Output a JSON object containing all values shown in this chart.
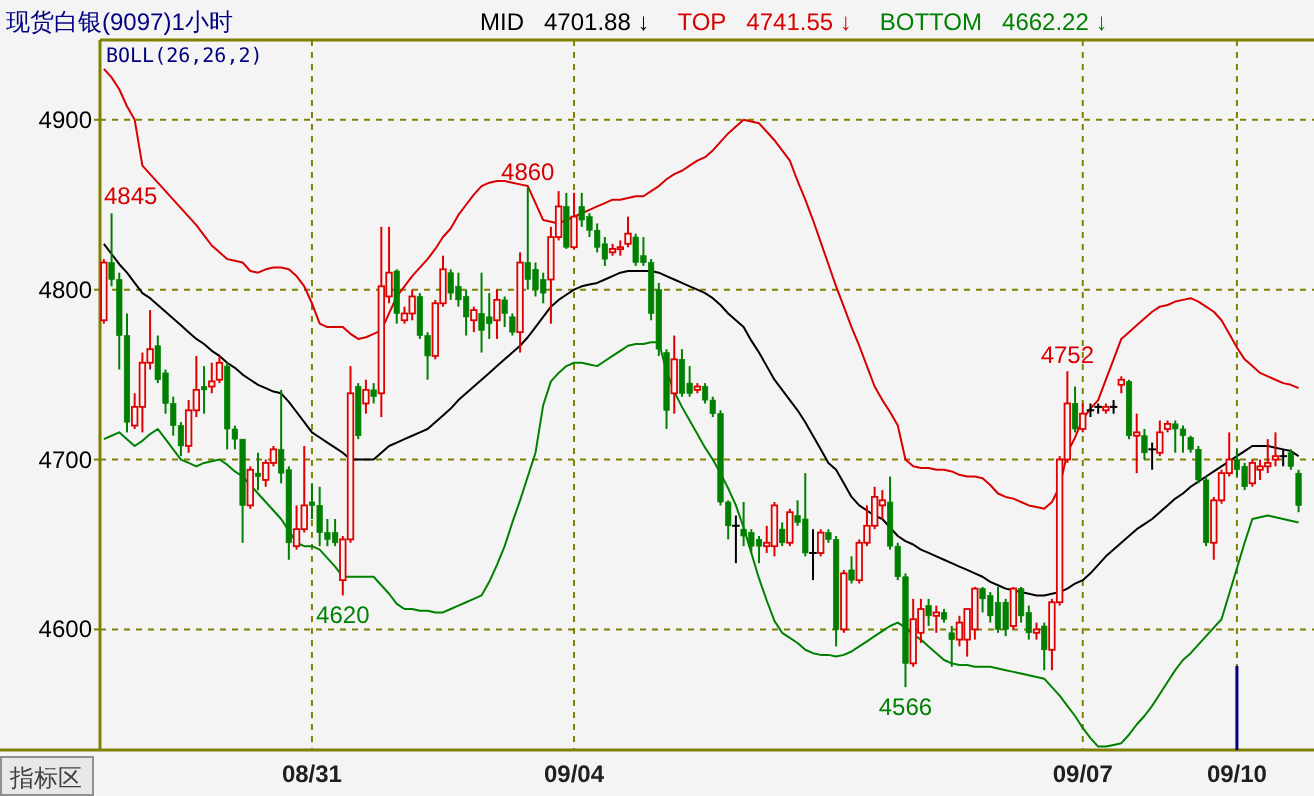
{
  "chart_data": {
    "type": "candlestick",
    "title": "现货白银(9097)1小时",
    "legend": "top",
    "grid": true,
    "ylim": [
      4529,
      4947
    ],
    "ref_lines": [
      {
        "axis": "x",
        "value": "09/10",
        "color": "#000080"
      }
    ],
    "yticks": [
      4600,
      4700,
      4800,
      4900
    ],
    "categories": [
      null,
      null,
      null,
      null,
      null,
      null,
      null,
      null,
      null,
      null,
      null,
      null,
      null,
      null,
      null,
      null,
      null,
      null,
      null,
      null,
      null,
      null,
      null,
      null,
      null,
      null,
      null,
      "08/31",
      null,
      null,
      null,
      null,
      null,
      null,
      null,
      null,
      null,
      null,
      null,
      null,
      null,
      null,
      null,
      null,
      null,
      null,
      null,
      null,
      null,
      null,
      null,
      null,
      null,
      null,
      null,
      null,
      null,
      null,
      null,
      null,
      null,
      "09/04",
      null,
      null,
      null,
      null,
      null,
      null,
      null,
      null,
      null,
      null,
      null,
      null,
      null,
      null,
      null,
      null,
      null,
      null,
      null,
      null,
      null,
      null,
      null,
      null,
      null,
      null,
      null,
      null,
      null,
      null,
      null,
      null,
      null,
      null,
      null,
      null,
      null,
      null,
      null,
      null,
      null,
      null,
      null,
      null,
      null,
      null,
      null,
      null,
      null,
      null,
      null,
      null,
      null,
      null,
      null,
      null,
      null,
      null,
      null,
      null,
      null,
      null,
      null,
      null,
      null,
      "09/07",
      null,
      null,
      null,
      null,
      null,
      null,
      null,
      null,
      null,
      null,
      null,
      null,
      null,
      null,
      null,
      null,
      null,
      null,
      null,
      "09/10",
      null,
      null,
      null,
      null,
      null,
      null,
      null,
      null
    ],
    "ohlc": [
      [
        4782,
        4818,
        4780,
        4816
      ],
      [
        4816,
        4845,
        4802,
        4806
      ],
      [
        4806,
        4810,
        4753,
        4773
      ],
      [
        4773,
        4786,
        4716,
        4722
      ],
      [
        4720,
        4739,
        4718,
        4731
      ],
      [
        4731,
        4763,
        4716,
        4757
      ],
      [
        4757,
        4788,
        4753,
        4765
      ],
      [
        4767,
        4773,
        4745,
        4747
      ],
      [
        4751,
        4753,
        4727,
        4733
      ],
      [
        4733,
        4737,
        4714,
        4720
      ],
      [
        4720,
        4722,
        4702,
        4708
      ],
      [
        4708,
        4735,
        4704,
        4729
      ],
      [
        4729,
        4761,
        4725,
        4741
      ],
      [
        4743,
        4755,
        4727,
        4741
      ],
      [
        4743,
        4757,
        4739,
        4746
      ],
      [
        4747,
        4761,
        4745,
        4757
      ],
      [
        4755,
        4757,
        4706,
        4718
      ],
      [
        4718,
        4720,
        4706,
        4712
      ],
      [
        4712,
        4712,
        4651,
        4673
      ],
      [
        4673,
        4696,
        4671,
        4694
      ],
      [
        4692,
        4704,
        4682,
        4690
      ],
      [
        4688,
        4700,
        4684,
        4698
      ],
      [
        4698,
        4708,
        4696,
        4706
      ],
      [
        4706,
        4741,
        4686,
        4692
      ],
      [
        4694,
        4696,
        4641,
        4651
      ],
      [
        4649,
        4673,
        4647,
        4659
      ],
      [
        4659,
        4708,
        4657,
        4673
      ],
      [
        4675,
        4686,
        4665,
        4673
      ],
      [
        4673,
        4684,
        4649,
        4657
      ],
      [
        4657,
        4665,
        4649,
        4653
      ],
      [
        4657,
        4665,
        4649,
        4651
      ],
      [
        4629,
        4655,
        4620,
        4653
      ],
      [
        4653,
        4755,
        4651,
        4739
      ],
      [
        4743,
        4745,
        4712,
        4714
      ],
      [
        4733,
        4747,
        4727,
        4741
      ],
      [
        4741,
        4745,
        4733,
        4737
      ],
      [
        4739,
        4837,
        4725,
        4802
      ],
      [
        4796,
        4837,
        4792,
        4810
      ],
      [
        4811,
        4812,
        4780,
        4786
      ],
      [
        4782,
        4790,
        4780,
        4786
      ],
      [
        4786,
        4800,
        4782,
        4796
      ],
      [
        4796,
        4798,
        4771,
        4773
      ],
      [
        4773,
        4775,
        4747,
        4761
      ],
      [
        4761,
        4794,
        4759,
        4792
      ],
      [
        4792,
        4820,
        4790,
        4812
      ],
      [
        4810,
        4812,
        4794,
        4798
      ],
      [
        4802,
        4810,
        4790,
        4794
      ],
      [
        4796,
        4800,
        4773,
        4784
      ],
      [
        4782,
        4790,
        4775,
        4788
      ],
      [
        4786,
        4810,
        4763,
        4776
      ],
      [
        4784,
        4798,
        4771,
        4780
      ],
      [
        4782,
        4800,
        4771,
        4794
      ],
      [
        4794,
        4796,
        4778,
        4786
      ],
      [
        4784,
        4786,
        4773,
        4775
      ],
      [
        4775,
        4822,
        4763,
        4816
      ],
      [
        4816,
        4860,
        4800,
        4806
      ],
      [
        4812,
        4816,
        4796,
        4800
      ],
      [
        4806,
        4810,
        4792,
        4798
      ],
      [
        4806,
        4837,
        4780,
        4831
      ],
      [
        4831,
        4858,
        4829,
        4849
      ],
      [
        4849,
        4857,
        4824,
        4825
      ],
      [
        4825,
        4857,
        4824,
        4843
      ],
      [
        4849,
        4857,
        4837,
        4841
      ],
      [
        4843,
        4845,
        4831,
        4835
      ],
      [
        4835,
        4839,
        4822,
        4825
      ],
      [
        4827,
        4831,
        4814,
        4818
      ],
      [
        4822,
        4827,
        4820,
        4824
      ],
      [
        4824,
        4829,
        4820,
        4825
      ],
      [
        4827,
        4843,
        4825,
        4833
      ],
      [
        4831,
        4833,
        4814,
        4816
      ],
      [
        4820,
        4831,
        4814,
        4816
      ],
      [
        4816,
        4818,
        4782,
        4786
      ],
      [
        4800,
        4804,
        4761,
        4765
      ],
      [
        4763,
        4765,
        4718,
        4729
      ],
      [
        4739,
        4773,
        4727,
        4759
      ],
      [
        4759,
        4765,
        4737,
        4739
      ],
      [
        4745,
        4755,
        4737,
        4739
      ],
      [
        4741,
        4745,
        4739,
        4743
      ],
      [
        4743,
        4745,
        4733,
        4735
      ],
      [
        4735,
        4737,
        4725,
        4727
      ],
      [
        4727,
        4729,
        4673,
        4675
      ],
      [
        4675,
        4676,
        4653,
        4661
      ],
      [
        4661,
        4667,
        4639,
        4661
      ],
      [
        4659,
        4675,
        4649,
        4655
      ],
      [
        4657,
        4659,
        4645,
        4649
      ],
      [
        4653,
        4655,
        4639,
        4649
      ],
      [
        4649,
        4661,
        4645,
        4651
      ],
      [
        4649,
        4675,
        4643,
        4673
      ],
      [
        4659,
        4663,
        4649,
        4651
      ],
      [
        4651,
        4671,
        4649,
        4669
      ],
      [
        4667,
        4676,
        4661,
        4663
      ],
      [
        4665,
        4692,
        4643,
        4645
      ],
      [
        4645,
        4659,
        4629,
        4645
      ],
      [
        4645,
        4659,
        4643,
        4657
      ],
      [
        4657,
        4659,
        4651,
        4653
      ],
      [
        4653,
        4655,
        4590,
        4600
      ],
      [
        4600,
        4635,
        4598,
        4633
      ],
      [
        4635,
        4643,
        4627,
        4629
      ],
      [
        4629,
        4653,
        4627,
        4651
      ],
      [
        4651,
        4673,
        4649,
        4661
      ],
      [
        4661,
        4684,
        4659,
        4678
      ],
      [
        4673,
        4682,
        4665,
        4676
      ],
      [
        4675,
        4690,
        4647,
        4649
      ],
      [
        4649,
        4651,
        4629,
        4631
      ],
      [
        4631,
        4633,
        4566,
        4580
      ],
      [
        4580,
        4618,
        4578,
        4606
      ],
      [
        4598,
        4618,
        4592,
        4612
      ],
      [
        4614,
        4618,
        4602,
        4608
      ],
      [
        4608,
        4614,
        4598,
        4610
      ],
      [
        4610,
        4612,
        4604,
        4606
      ],
      [
        4598,
        4602,
        4578,
        4594
      ],
      [
        4594,
        4608,
        4590,
        4604
      ],
      [
        4594,
        4612,
        4584,
        4612
      ],
      [
        4600,
        4625,
        4594,
        4624
      ],
      [
        4624,
        4625,
        4610,
        4618
      ],
      [
        4620,
        4622,
        4604,
        4608
      ],
      [
        4616,
        4625,
        4598,
        4600
      ],
      [
        4616,
        4618,
        4596,
        4600
      ],
      [
        4602,
        4625,
        4600,
        4624
      ],
      [
        4624,
        4625,
        4604,
        4608
      ],
      [
        4610,
        4614,
        4594,
        4598
      ],
      [
        4598,
        4604,
        4594,
        4600
      ],
      [
        4602,
        4604,
        4576,
        4588
      ],
      [
        4588,
        4618,
        4576,
        4616
      ],
      [
        4616,
        4702,
        4614,
        4700
      ],
      [
        4700,
        4752,
        4698,
        4733
      ],
      [
        4733,
        4743,
        4716,
        4718
      ],
      [
        4718,
        4733,
        4716,
        4727
      ],
      [
        4729,
        4733,
        4725,
        4729
      ],
      [
        4731,
        4733,
        4727,
        4731
      ],
      [
        4729,
        4733,
        4727,
        4731
      ],
      [
        4731,
        4735,
        4727,
        4731
      ],
      [
        4744,
        4749,
        4739,
        4747
      ],
      [
        4746,
        4747,
        4712,
        4714
      ],
      [
        4714,
        4727,
        4692,
        4716
      ],
      [
        4714,
        4718,
        4700,
        4704
      ],
      [
        4706,
        4710,
        4694,
        4706
      ],
      [
        4704,
        4723,
        4702,
        4716
      ],
      [
        4718,
        4723,
        4716,
        4721
      ],
      [
        4721,
        4723,
        4704,
        4718
      ],
      [
        4718,
        4720,
        4704,
        4714
      ],
      [
        4713,
        4714,
        4704,
        4706
      ],
      [
        4706,
        4708,
        4686,
        4688
      ],
      [
        4688,
        4690,
        4649,
        4651
      ],
      [
        4651,
        4678,
        4641,
        4676
      ],
      [
        4676,
        4694,
        4674,
        4692
      ],
      [
        4692,
        4716,
        4690,
        4700
      ],
      [
        4700,
        4706,
        4690,
        4694
      ],
      [
        4696,
        4698,
        4682,
        4684
      ],
      [
        4686,
        4700,
        4684,
        4698
      ],
      [
        4694,
        4700,
        4688,
        4696
      ],
      [
        4696,
        4712,
        4692,
        4698
      ],
      [
        4700,
        4716,
        4696,
        4702
      ],
      [
        4702,
        4706,
        4696,
        4702
      ],
      [
        4704,
        4706,
        4694,
        4696
      ],
      [
        4692,
        4694,
        4669,
        4673
      ]
    ],
    "series": [
      {
        "name": "MID",
        "type": "line",
        "color": "#000000",
        "values": [
          4827,
          4821,
          4815,
          4810,
          4804,
          4798,
          4795,
          4791,
          4787,
          4783,
          4779,
          4775,
          4771,
          4768,
          4764,
          4761,
          4757,
          4754,
          4750,
          4747,
          4744,
          4742,
          4740,
          4739,
          4734,
          4728,
          4722,
          4716,
          4713,
          4710,
          4707,
          4704,
          4700,
          4700,
          4700,
          4700,
          4704,
          4708,
          4710,
          4712,
          4714,
          4716,
          4718,
          4722,
          4726,
          4730,
          4735,
          4739,
          4743,
          4747,
          4751,
          4755,
          4759,
          4763,
          4767,
          4772,
          4778,
          4784,
          4790,
          4794,
          4797,
          4800,
          4802,
          4803,
          4804,
          4806,
          4808,
          4810,
          4811,
          4811,
          4811,
          4811,
          4810,
          4808,
          4806,
          4804,
          4802,
          4800,
          4798,
          4795,
          4791,
          4786,
          4782,
          4778,
          4770,
          4763,
          4755,
          4747,
          4741,
          4735,
          4729,
          4722,
          4714,
          4706,
          4698,
          4694,
          4686,
          4678,
          4673,
          4670,
          4667,
          4665,
          4660,
          4655,
          4652,
          4650,
          4647,
          4645,
          4643,
          4641,
          4639,
          4637,
          4635,
          4633,
          4631,
          4628,
          4626,
          4624,
          4623,
          4622,
          4621,
          4620,
          4620,
          4621,
          4622,
          4624,
          4627,
          4629,
          4633,
          4638,
          4643,
          4647,
          4651,
          4655,
          4659,
          4662,
          4665,
          4669,
          4673,
          4677,
          4680,
          4684,
          4687,
          4690,
          4693,
          4696,
          4699,
          4702,
          4705,
          4708,
          4708,
          4708,
          4707,
          4706,
          4705,
          4702
        ]
      },
      {
        "name": "TOP",
        "type": "line",
        "color": "#d80000",
        "values": [
          4930,
          4925,
          4918,
          4908,
          4900,
          4873,
          4868,
          4863,
          4858,
          4853,
          4848,
          4843,
          4838,
          4832,
          4826,
          4822,
          4818,
          4817,
          4816,
          4811,
          4810,
          4812,
          4813,
          4813,
          4812,
          4808,
          4802,
          4792,
          4780,
          4778,
          4778,
          4778,
          4774,
          4771,
          4772,
          4774,
          4776,
          4786,
          4796,
          4802,
          4808,
          4813,
          4818,
          4824,
          4831,
          4836,
          4844,
          4850,
          4856,
          4861,
          4863,
          4864,
          4864,
          4863,
          4862,
          4861,
          4851,
          4841,
          4840,
          4839,
          4841,
          4843,
          4845,
          4847,
          4849,
          4851,
          4853,
          4853,
          4854,
          4855,
          4855,
          4858,
          4861,
          4865,
          4868,
          4870,
          4873,
          4876,
          4878,
          4882,
          4887,
          4892,
          4896,
          4900,
          4899,
          4898,
          4893,
          4888,
          4882,
          4876,
          4864,
          4853,
          4841,
          4828,
          4815,
          4802,
          4790,
          4778,
          4767,
          4755,
          4743,
          4735,
          4728,
          4720,
          4700,
          4696,
          4695,
          4695,
          4694,
          4694,
          4693,
          4691,
          4690,
          4690,
          4689,
          4685,
          4680,
          4678,
          4677,
          4675,
          4673,
          4672,
          4671,
          4675,
          4684,
          4704,
          4713,
          4724,
          4730,
          4735,
          4747,
          4759,
          4771,
          4775,
          4779,
          4783,
          4787,
          4790,
          4791,
          4793,
          4794,
          4795,
          4793,
          4790,
          4787,
          4782,
          4774,
          4766,
          4759,
          4755,
          4751,
          4749,
          4747,
          4745,
          4744,
          4742
        ]
      },
      {
        "name": "BOTTOM",
        "type": "line",
        "color": "#008000",
        "values": [
          4712,
          4714,
          4716,
          4712,
          4708,
          4711,
          4715,
          4718,
          4712,
          4706,
          4700,
          4698,
          4696,
          4698,
          4699,
          4700,
          4697,
          4693,
          4690,
          4685,
          4680,
          4675,
          4670,
          4665,
          4658,
          4651,
          4649,
          4649,
          4647,
          4642,
          4637,
          4631,
          4631,
          4631,
          4631,
          4631,
          4626,
          4621,
          4615,
          4612,
          4612,
          4611,
          4611,
          4610,
          4610,
          4612,
          4614,
          4616,
          4618,
          4620,
          4628,
          4638,
          4649,
          4663,
          4676,
          4690,
          4704,
          4732,
          4746,
          4751,
          4755,
          4757,
          4757,
          4756,
          4755,
          4758,
          4761,
          4764,
          4767,
          4768,
          4768,
          4769,
          4769,
          4752,
          4740,
          4731,
          4723,
          4715,
          4707,
          4700,
          4692,
          4683,
          4673,
          4660,
          4645,
          4630,
          4617,
          4605,
          4598,
          4595,
          4592,
          4588,
          4586,
          4585,
          4585,
          4584,
          4585,
          4587,
          4590,
          4593,
          4596,
          4599,
          4602,
          4604,
          4601,
          4597,
          4594,
          4590,
          4586,
          4582,
          4580,
          4579,
          4579,
          4578,
          4578,
          4578,
          4577,
          4576,
          4575,
          4574,
          4573,
          4572,
          4571,
          4566,
          4561,
          4555,
          4549,
          4542,
          4536,
          4531,
          4531,
          4532,
          4533,
          4538,
          4544,
          4549,
          4555,
          4562,
          4569,
          4576,
          4582,
          4586,
          4591,
          4596,
          4601,
          4606,
          4621,
          4636,
          4651,
          4665,
          4666,
          4667,
          4666,
          4665,
          4664,
          4663
        ]
      }
    ],
    "annotations": [
      "BOLL(26,26,2)",
      "4701.88 ↓",
      "4741.55 ↓",
      "4662.22 ↓",
      "4845",
      {
        "text": "4860",
        "y": 4860
      },
      {
        "text": "4620",
        "y": 4620
      },
      {
        "text": "4566",
        "y": 4566
      },
      {
        "text": "4752",
        "y": 4752
      },
      "指标区"
    ]
  }
}
